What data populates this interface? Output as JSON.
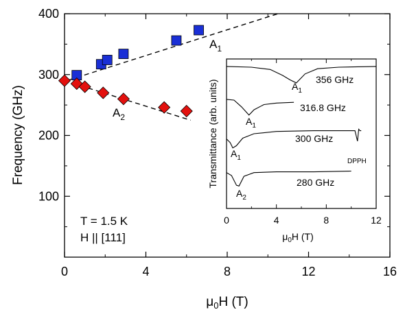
{
  "chart_data": [
    {
      "type": "scatter",
      "xlabel": "μ0H (T)",
      "ylabel": "Frequency (GHz)",
      "xlim": [
        0,
        16
      ],
      "ylim": [
        0,
        400
      ],
      "xticks": [
        0,
        4,
        8,
        12,
        16
      ],
      "yticks": [
        100,
        200,
        300,
        400
      ],
      "annotations": {
        "temperature": "T = 1.5 K",
        "orientation": "H || [111]"
      },
      "series": [
        {
          "name": "A1",
          "marker": "square",
          "color": "#1a2fd6",
          "x": [
            0.6,
            1.8,
            2.1,
            2.9,
            5.5,
            6.6
          ],
          "y": [
            299,
            317,
            324,
            334,
            356,
            373
          ]
        },
        {
          "name": "A2",
          "marker": "diamond",
          "color": "#e3110e",
          "x": [
            0.0,
            0.6,
            1.0,
            1.9,
            2.9,
            4.9,
            6.0
          ],
          "y": [
            290,
            285,
            280,
            270,
            260,
            246,
            240
          ]
        }
      ],
      "fits": [
        {
          "name": "A1",
          "x": [
            0.2,
            10.5
          ],
          "y": [
            291,
            400
          ]
        },
        {
          "name": "A2",
          "x": [
            0.0,
            6.2
          ],
          "y": [
            290,
            225
          ]
        }
      ]
    },
    {
      "type": "line",
      "xlabel": "μ0H (T)",
      "ylabel": "Transmittance (arb. units)",
      "xlim": [
        0,
        12
      ],
      "xticks": [
        0,
        4,
        8,
        12
      ],
      "traces": [
        {
          "freq": "356 GHz",
          "mode": "A1",
          "x": [
            0,
            2,
            3.5,
            4.5,
            5.1,
            5.6,
            6.3,
            7.3,
            9,
            12
          ],
          "y": [
            0.95,
            0.945,
            0.93,
            0.89,
            0.86,
            0.84,
            0.9,
            0.935,
            0.945,
            0.95
          ]
        },
        {
          "freq": "316.8 GHz",
          "mode": "A1",
          "x": [
            0,
            0.6,
            1.2,
            1.8,
            2.2,
            3,
            4,
            5.4
          ],
          "y": [
            0.73,
            0.725,
            0.68,
            0.625,
            0.66,
            0.695,
            0.705,
            0.71
          ]
        },
        {
          "freq": "300 GHz",
          "mode": "A1",
          "x": [
            0,
            0.3,
            0.5,
            0.8,
            1.3,
            2.2,
            4,
            7,
            10.3,
            10.5,
            10.6,
            10.7,
            10.8
          ],
          "y": [
            0.465,
            0.44,
            0.405,
            0.42,
            0.47,
            0.5,
            0.515,
            0.52,
            0.52,
            0.45,
            0.53,
            0.52,
            0.52
          ]
        },
        {
          "freq": "280 GHz",
          "mode": "A2",
          "x": [
            0,
            0.4,
            0.8,
            1.0,
            1.4,
            2.2,
            4,
            7,
            10
          ],
          "y": [
            0.24,
            0.22,
            0.155,
            0.15,
            0.215,
            0.24,
            0.245,
            0.245,
            0.25
          ]
        }
      ],
      "markers": {
        "A1": "A1",
        "A2": "A2",
        "DPPH": "DPPH"
      }
    }
  ]
}
